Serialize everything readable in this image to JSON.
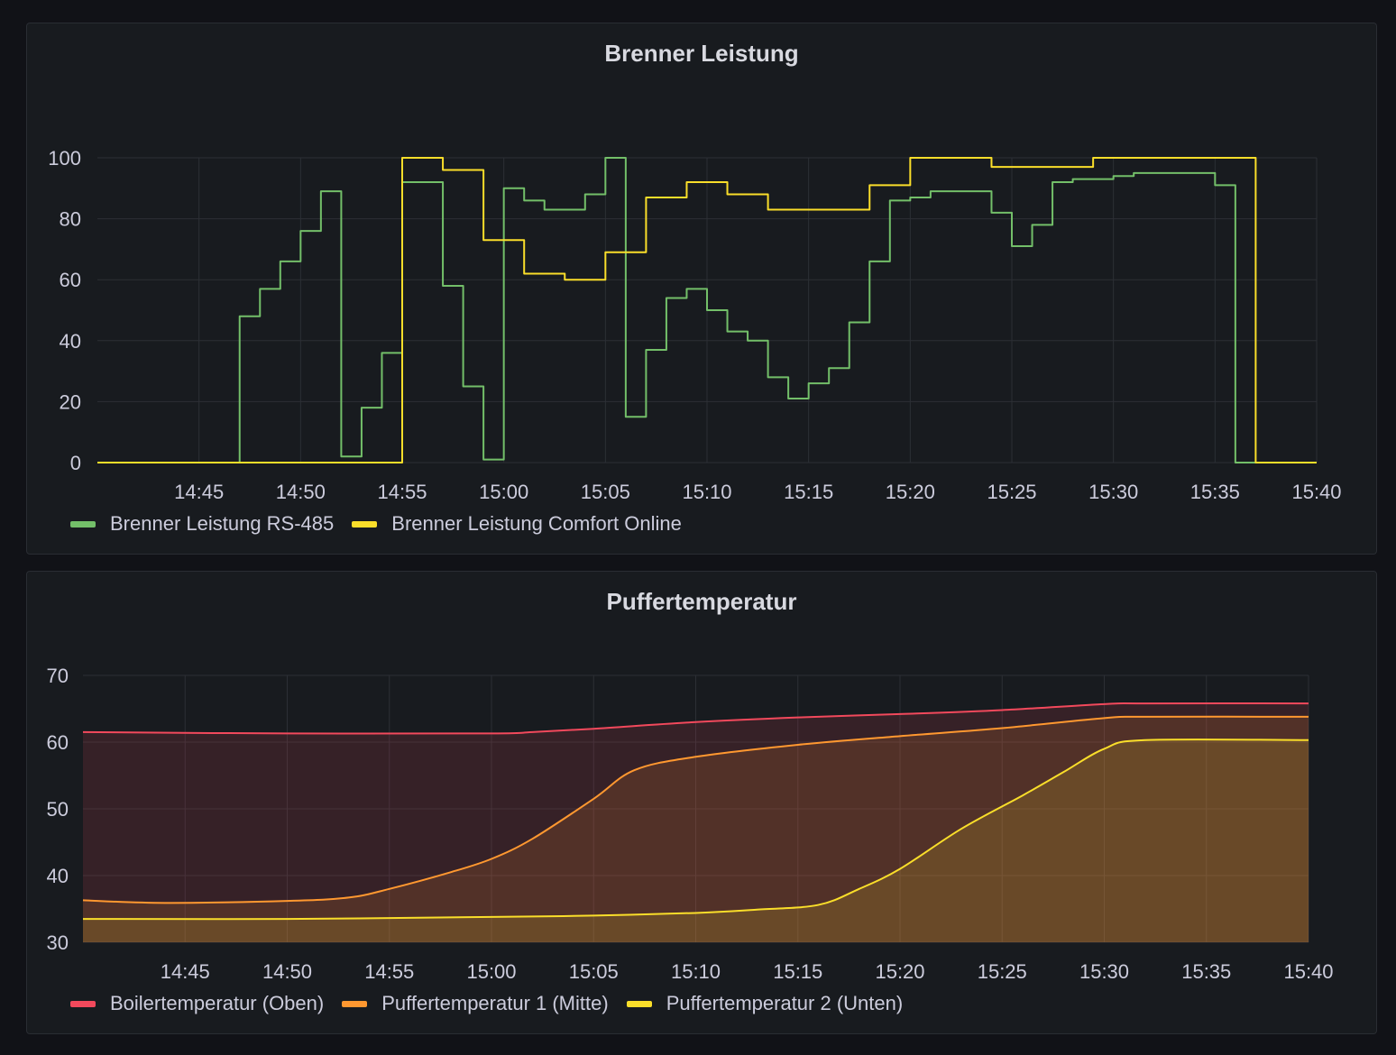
{
  "panels": [
    {
      "title": "Brenner Leistung",
      "chart_data": {
        "type": "line",
        "line_style": "step",
        "x_unit": "time",
        "x_range": [
          "14:40",
          "15:40"
        ],
        "x_ticks": [
          "14:45",
          "14:50",
          "14:55",
          "15:00",
          "15:05",
          "15:10",
          "15:15",
          "15:20",
          "15:25",
          "15:30",
          "15:35",
          "15:40"
        ],
        "ylim": [
          0,
          100
        ],
        "y_ticks": [
          0,
          20,
          40,
          60,
          80,
          100
        ],
        "grid": true,
        "legend_position": "bottom-left",
        "series": [
          {
            "name": "Brenner Leistung RS-485",
            "color": "#73bf69",
            "points": [
              [
                "14:40",
                0
              ],
              [
                "14:47",
                48
              ],
              [
                "14:48",
                57
              ],
              [
                "14:49",
                66
              ],
              [
                "14:50",
                76
              ],
              [
                "14:51",
                89
              ],
              [
                "14:52",
                2
              ],
              [
                "14:53",
                18
              ],
              [
                "14:54",
                36
              ],
              [
                "14:55",
                92
              ],
              [
                "14:57",
                58
              ],
              [
                "14:58",
                25
              ],
              [
                "14:59",
                1
              ],
              [
                "15:00",
                90
              ],
              [
                "15:01",
                86
              ],
              [
                "15:02",
                83
              ],
              [
                "15:04",
                88
              ],
              [
                "15:05",
                100
              ],
              [
                "15:06",
                15
              ],
              [
                "15:07",
                37
              ],
              [
                "15:08",
                54
              ],
              [
                "15:09",
                57
              ],
              [
                "15:10",
                50
              ],
              [
                "15:11",
                43
              ],
              [
                "15:12",
                40
              ],
              [
                "15:13",
                28
              ],
              [
                "15:14",
                21
              ],
              [
                "15:15",
                26
              ],
              [
                "15:16",
                31
              ],
              [
                "15:17",
                46
              ],
              [
                "15:18",
                66
              ],
              [
                "15:19",
                86
              ],
              [
                "15:20",
                87
              ],
              [
                "15:21",
                89
              ],
              [
                "15:22",
                89
              ],
              [
                "15:24",
                82
              ],
              [
                "15:25",
                71
              ],
              [
                "15:26",
                78
              ],
              [
                "15:27",
                92
              ],
              [
                "15:28",
                93
              ],
              [
                "15:30",
                94
              ],
              [
                "15:31",
                95
              ],
              [
                "15:35",
                91
              ],
              [
                "15:36",
                0
              ],
              [
                "15:40",
                0
              ]
            ]
          },
          {
            "name": "Brenner Leistung Comfort Online",
            "color": "#fade2a",
            "points": [
              [
                "14:40",
                0
              ],
              [
                "14:55",
                100
              ],
              [
                "14:57",
                96
              ],
              [
                "14:59",
                73
              ],
              [
                "15:01",
                62
              ],
              [
                "15:03",
                60
              ],
              [
                "15:05",
                69
              ],
              [
                "15:07",
                87
              ],
              [
                "15:09",
                92
              ],
              [
                "15:11",
                88
              ],
              [
                "15:13",
                83
              ],
              [
                "15:18",
                91
              ],
              [
                "15:20",
                100
              ],
              [
                "15:24",
                97
              ],
              [
                "15:29",
                100
              ],
              [
                "15:37",
                0
              ],
              [
                "15:40",
                0
              ]
            ]
          }
        ]
      }
    },
    {
      "title": "Puffertemperatur",
      "chart_data": {
        "type": "area",
        "line_style": "smooth",
        "x_unit": "time",
        "x_range": [
          "14:40",
          "15:40"
        ],
        "x_ticks": [
          "14:45",
          "14:50",
          "14:55",
          "15:00",
          "15:05",
          "15:10",
          "15:15",
          "15:20",
          "15:25",
          "15:30",
          "15:35",
          "15:40"
        ],
        "ylim": [
          30,
          70
        ],
        "y_ticks": [
          30,
          40,
          50,
          60,
          70
        ],
        "grid": true,
        "legend_position": "bottom-left",
        "series": [
          {
            "name": "Boilertemperatur (Oben)",
            "color": "#f2495c",
            "points": [
              [
                "14:40",
                61.5
              ],
              [
                "14:50",
                61.3
              ],
              [
                "15:00",
                61.3
              ],
              [
                "15:02",
                61.5
              ],
              [
                "15:05",
                62.0
              ],
              [
                "15:10",
                63.0
              ],
              [
                "15:15",
                63.7
              ],
              [
                "15:20",
                64.2
              ],
              [
                "15:25",
                64.8
              ],
              [
                "15:30",
                65.7
              ],
              [
                "15:32",
                65.8
              ],
              [
                "15:40",
                65.8
              ]
            ]
          },
          {
            "name": "Puffertemperatur 1 (Mitte)",
            "color": "#ff9830",
            "points": [
              [
                "14:40",
                36.3
              ],
              [
                "14:44",
                35.9
              ],
              [
                "14:50",
                36.2
              ],
              [
                "14:53",
                36.7
              ],
              [
                "14:55",
                38.0
              ],
              [
                "14:58",
                40.5
              ],
              [
                "15:00",
                42.5
              ],
              [
                "15:02",
                45.5
              ],
              [
                "15:05",
                51.5
              ],
              [
                "15:07",
                55.8
              ],
              [
                "15:10",
                57.8
              ],
              [
                "15:15",
                59.6
              ],
              [
                "15:20",
                60.9
              ],
              [
                "15:25",
                62.1
              ],
              [
                "15:30",
                63.6
              ],
              [
                "15:32",
                63.8
              ],
              [
                "15:40",
                63.8
              ]
            ]
          },
          {
            "name": "Puffertemperatur 2 (Unten)",
            "color": "#fade2a",
            "points": [
              [
                "14:40",
                33.5
              ],
              [
                "14:50",
                33.5
              ],
              [
                "15:00",
                33.8
              ],
              [
                "15:05",
                34.0
              ],
              [
                "15:10",
                34.4
              ],
              [
                "15:13",
                34.9
              ],
              [
                "15:16",
                35.6
              ],
              [
                "15:18",
                38.0
              ],
              [
                "15:20",
                41.0
              ],
              [
                "15:23",
                47.0
              ],
              [
                "15:26",
                52.0
              ],
              [
                "15:28",
                55.5
              ],
              [
                "15:30",
                59.0
              ],
              [
                "15:32",
                60.3
              ],
              [
                "15:40",
                60.3
              ]
            ]
          }
        ]
      }
    }
  ]
}
